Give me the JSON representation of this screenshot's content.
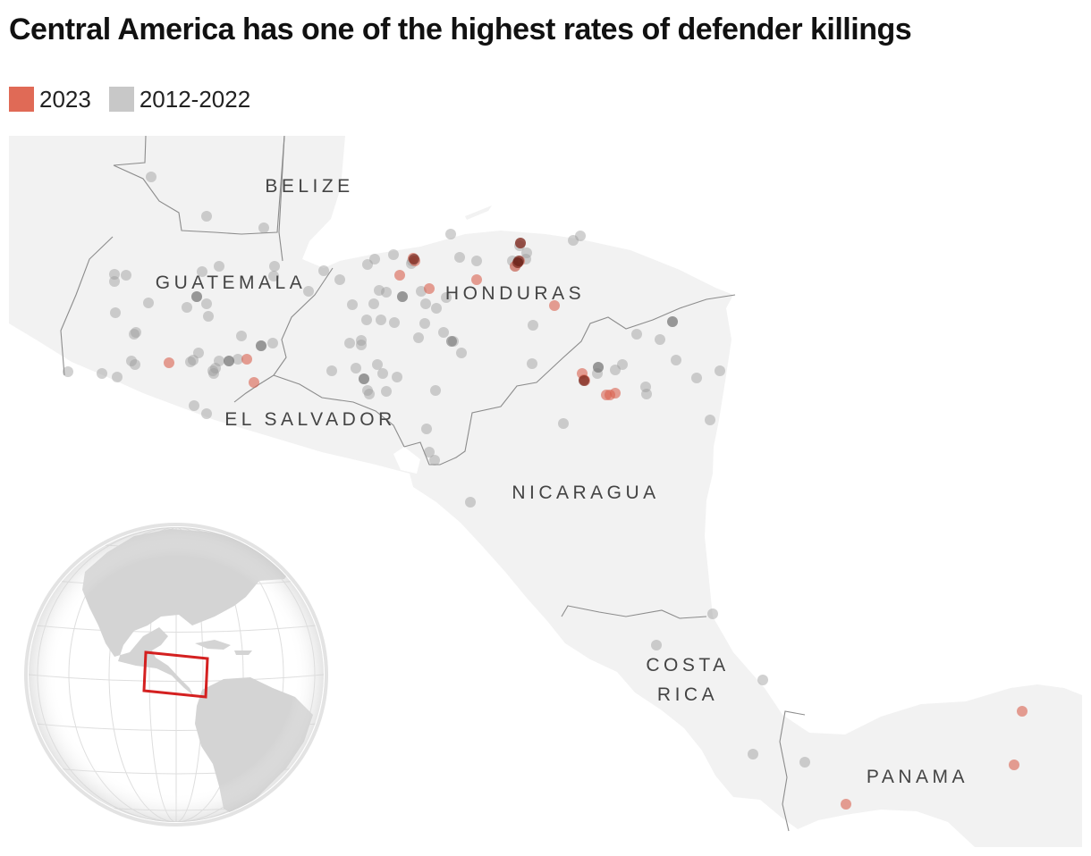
{
  "title": "Central America has one of the highest rates of defender killings",
  "legend": [
    {
      "label": "2023",
      "color": "#e06a56"
    },
    {
      "label": "2012-2022",
      "color": "#c8c8c8"
    }
  ],
  "colors": {
    "land": "#f2f2f2",
    "border": "#8c8c8c",
    "point_2023": "#d9604e",
    "point_past": "#9a9a9a",
    "globe_land": "#d4d4d4",
    "globe_box": "#d42020"
  },
  "countries": [
    {
      "name": "BELIZE",
      "lines": [
        "BELIZE"
      ]
    },
    {
      "name": "GUATEMALA",
      "lines": [
        "GUATEMALA"
      ]
    },
    {
      "name": "HONDURAS",
      "lines": [
        "HONDURAS"
      ]
    },
    {
      "name": "EL SALVADOR",
      "lines": [
        "EL SALVADOR"
      ]
    },
    {
      "name": "NICARAGUA",
      "lines": [
        "NICARAGUA"
      ]
    },
    {
      "name": "COSTA RICA",
      "lines": [
        "COSTA",
        "RICA"
      ]
    },
    {
      "name": "PANAMA",
      "lines": [
        "PANAMA"
      ]
    }
  ]
}
